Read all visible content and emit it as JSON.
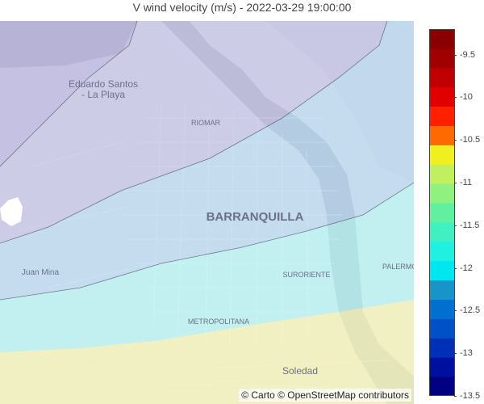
{
  "title": "V wind velocity (m/s) - 2022-03-29 19:00:00",
  "attribution": "© Carto © OpenStreetMap contributors",
  "places": [
    {
      "id": "eduardo-santos",
      "lines": [
        "Eduardo Santos",
        "- La Playa"
      ]
    },
    {
      "id": "riomar",
      "lines": [
        "RIOMAR"
      ]
    },
    {
      "id": "barranquilla",
      "lines": [
        "BARRANQUILLA"
      ]
    },
    {
      "id": "juan-mina",
      "lines": [
        "Juan Mina"
      ]
    },
    {
      "id": "suroriente",
      "lines": [
        "SURORIENTE"
      ]
    },
    {
      "id": "palermo",
      "lines": [
        "PALERMO"
      ]
    },
    {
      "id": "metropolitana",
      "lines": [
        "METROPOLITANA"
      ]
    },
    {
      "id": "soledad",
      "lines": [
        "Soledad"
      ]
    }
  ],
  "colorbar": {
    "min": -13.5,
    "max": -9.2,
    "ticks": [
      "-9.5",
      "-10",
      "-10.5",
      "-11",
      "-11.5",
      "-12",
      "-12.5",
      "-13",
      "-13.5"
    ],
    "tick_values": [
      -9.5,
      -10,
      -10.5,
      -11,
      -11.5,
      -12,
      -12.5,
      -13,
      -13.5
    ],
    "colors": [
      "#000080",
      "#00109e",
      "#0030b8",
      "#0050c8",
      "#0070d0",
      "#1894c8",
      "#00e6f0",
      "#20f0e0",
      "#40f0c0",
      "#60f0a0",
      "#90f080",
      "#c0f060",
      "#f0f020",
      "#ff6a00",
      "#ff2000",
      "#e00000",
      "#c00000",
      "#a00000",
      "#8a0000"
    ]
  },
  "contour_bands": [
    {
      "range": "<= -13.3",
      "color": "#b0a8d8"
    },
    {
      "range": "-13.3 .. -12.6",
      "color": "#a8c0e8"
    },
    {
      "range": "-12.6 .. -12.0",
      "color": "#a8f0f0"
    },
    {
      "range": ">= -12.0",
      "color": "#f0f0b0"
    }
  ]
}
